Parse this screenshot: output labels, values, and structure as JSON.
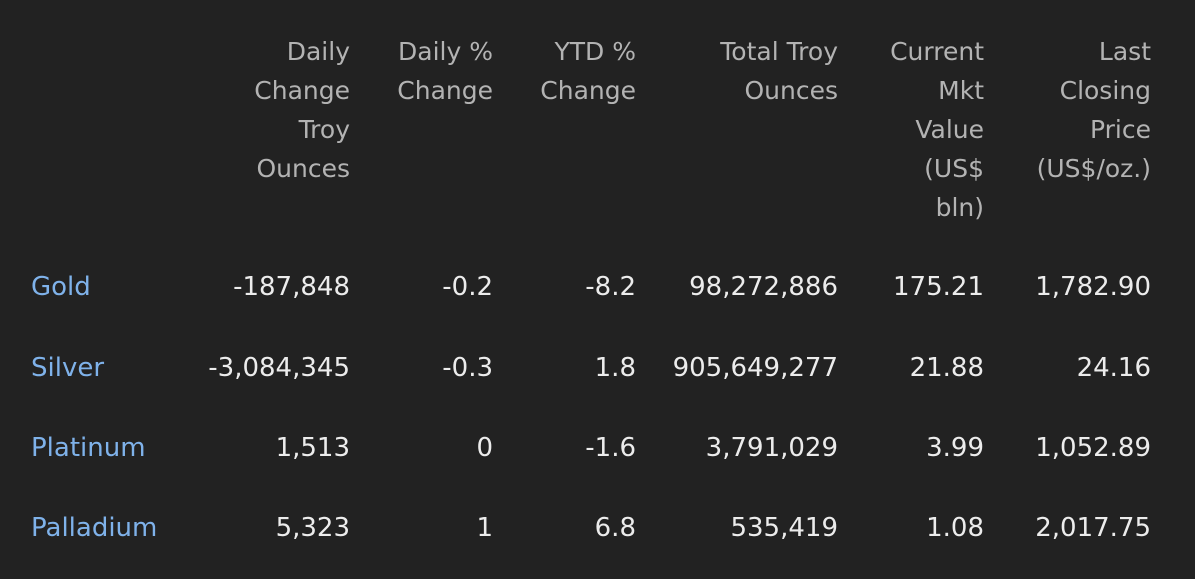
{
  "colors": {
    "background": "#222222",
    "header_text": "#b3b3b3",
    "value_text": "#ececec",
    "link": "#7fb2ea"
  },
  "headers": [
    [
      "Daily",
      "Change",
      "Troy",
      "Ounces"
    ],
    [
      "Daily %",
      "Change"
    ],
    [
      "YTD %",
      "Change"
    ],
    [
      "Total Troy",
      "Ounces"
    ],
    [
      "Current",
      "Mkt",
      "Value",
      "(US$",
      "bln)"
    ],
    [
      "Last",
      "Closing",
      "Price",
      "(US$/oz.)"
    ]
  ],
  "rows": [
    {
      "metal": "Gold",
      "values": [
        "-187,848",
        "-0.2",
        "-8.2",
        "98,272,886",
        "175.21",
        "1,782.90"
      ]
    },
    {
      "metal": "Silver",
      "values": [
        "-3,084,345",
        "-0.3",
        "1.8",
        "905,649,277",
        "21.88",
        "24.16"
      ]
    },
    {
      "metal": "Platinum",
      "values": [
        "1,513",
        "0",
        "-1.6",
        "3,791,029",
        "3.99",
        "1,052.89"
      ]
    },
    {
      "metal": "Palladium",
      "values": [
        "5,323",
        "1",
        "6.8",
        "535,419",
        "1.08",
        "2,017.75"
      ]
    }
  ]
}
